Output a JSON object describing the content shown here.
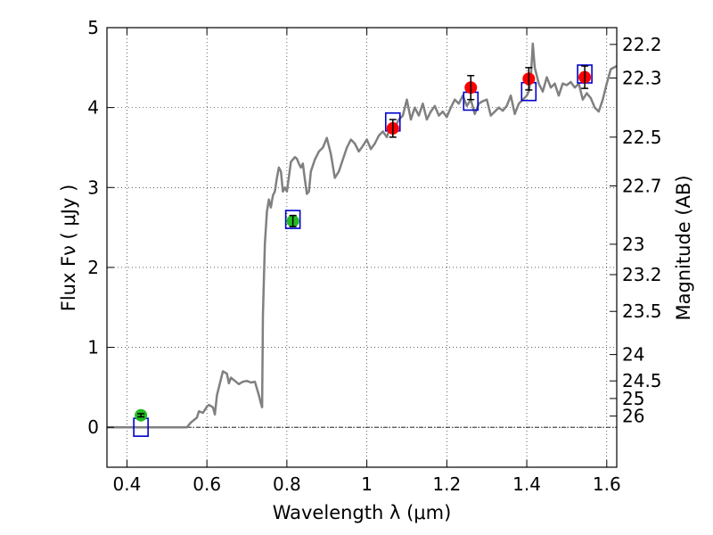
{
  "chart_data": {
    "type": "line",
    "xlabel": "Wavelength  λ (μm)",
    "ylabel": "Flux  Fν  ( μJy )",
    "ylabel_right": "Magnitude (AB)",
    "xlim": [
      0.35,
      1.625
    ],
    "ylim": [
      -0.5,
      5.0
    ],
    "grid": true,
    "x_ticks": [
      0.4,
      0.6,
      0.8,
      1.0,
      1.2,
      1.4,
      1.6
    ],
    "x_tick_labels": [
      "0.4",
      "0.6",
      "0.8",
      "1",
      "1.2",
      "1.4",
      "1.6"
    ],
    "y_ticks": [
      0,
      1,
      2,
      3,
      4,
      5
    ],
    "y_tick_labels": [
      "0",
      "1",
      "2",
      "3",
      "4",
      "5"
    ],
    "right_ticks": [
      {
        "label": "22.2",
        "flux": 4.79
      },
      {
        "label": "22.3",
        "flux": 4.37
      },
      {
        "label": "22.5",
        "flux": 3.63
      },
      {
        "label": "22.7",
        "flux": 3.02
      },
      {
        "label": "23",
        "flux": 2.29
      },
      {
        "label": "23.2",
        "flux": 1.91
      },
      {
        "label": "23.5",
        "flux": 1.45
      },
      {
        "label": "24",
        "flux": 0.91
      },
      {
        "label": "24.5",
        "flux": 0.58
      },
      {
        "label": "25",
        "flux": 0.36
      },
      {
        "label": "26",
        "flux": 0.14
      }
    ],
    "series": [
      {
        "kind": "spectrum",
        "color": "#808080",
        "x": [
          0.35,
          0.55,
          0.56,
          0.575,
          0.58,
          0.59,
          0.6,
          0.605,
          0.615,
          0.62,
          0.625,
          0.63,
          0.64,
          0.65,
          0.655,
          0.66,
          0.67,
          0.68,
          0.69,
          0.7,
          0.71,
          0.72,
          0.73,
          0.735,
          0.738,
          0.74,
          0.745,
          0.75,
          0.755,
          0.76,
          0.765,
          0.77,
          0.775,
          0.78,
          0.785,
          0.79,
          0.795,
          0.8,
          0.81,
          0.815,
          0.82,
          0.825,
          0.83,
          0.835,
          0.84,
          0.845,
          0.85,
          0.855,
          0.86,
          0.87,
          0.88,
          0.89,
          0.9,
          0.91,
          0.92,
          0.93,
          0.94,
          0.95,
          0.96,
          0.97,
          0.98,
          0.99,
          1.0,
          1.01,
          1.02,
          1.03,
          1.04,
          1.05,
          1.06,
          1.07,
          1.08,
          1.09,
          1.1,
          1.11,
          1.12,
          1.13,
          1.14,
          1.15,
          1.16,
          1.17,
          1.18,
          1.19,
          1.2,
          1.21,
          1.22,
          1.23,
          1.24,
          1.25,
          1.26,
          1.27,
          1.28,
          1.29,
          1.3,
          1.31,
          1.32,
          1.33,
          1.34,
          1.35,
          1.36,
          1.37,
          1.38,
          1.39,
          1.4,
          1.405,
          1.41,
          1.415,
          1.42,
          1.43,
          1.44,
          1.45,
          1.46,
          1.47,
          1.48,
          1.49,
          1.5,
          1.51,
          1.52,
          1.53,
          1.54,
          1.55,
          1.56,
          1.57,
          1.58,
          1.59,
          1.6,
          1.61,
          1.625
        ],
        "y": [
          0.0,
          0.0,
          0.06,
          0.12,
          0.2,
          0.18,
          0.26,
          0.28,
          0.25,
          0.16,
          0.4,
          0.5,
          0.7,
          0.67,
          0.55,
          0.62,
          0.58,
          0.54,
          0.57,
          0.58,
          0.56,
          0.57,
          0.4,
          0.3,
          0.25,
          1.4,
          2.3,
          2.7,
          2.85,
          2.75,
          2.9,
          2.95,
          3.12,
          3.25,
          3.2,
          2.95,
          3.0,
          2.95,
          3.32,
          3.35,
          3.38,
          3.36,
          3.3,
          3.25,
          3.3,
          3.1,
          2.92,
          2.95,
          3.2,
          3.35,
          3.45,
          3.5,
          3.62,
          3.42,
          3.12,
          3.2,
          3.35,
          3.5,
          3.6,
          3.55,
          3.45,
          3.52,
          3.6,
          3.48,
          3.55,
          3.65,
          3.7,
          3.63,
          3.78,
          3.75,
          3.85,
          3.9,
          4.1,
          3.85,
          4.0,
          3.9,
          4.05,
          3.85,
          3.95,
          4.02,
          3.9,
          3.95,
          3.88,
          4.0,
          4.1,
          4.05,
          4.15,
          4.02,
          4.1,
          3.92,
          4.05,
          4.08,
          4.1,
          3.9,
          3.95,
          4.0,
          3.96,
          4.02,
          4.15,
          3.92,
          4.05,
          4.1,
          4.15,
          4.2,
          4.35,
          4.8,
          4.5,
          4.3,
          4.2,
          4.38,
          4.25,
          4.3,
          4.15,
          4.3,
          4.28,
          4.32,
          4.25,
          4.3,
          4.1,
          4.18,
          4.12,
          4.0,
          3.95,
          4.1,
          4.3,
          4.48,
          4.52
        ]
      },
      {
        "kind": "model_photometry",
        "marker": "open-square",
        "color": "#0000cc",
        "x": [
          0.435,
          0.815,
          1.065,
          1.26,
          1.405,
          1.545
        ],
        "y": [
          0.0,
          2.6,
          3.82,
          4.08,
          4.2,
          4.42
        ]
      },
      {
        "kind": "observed_photometry",
        "marker": "filled-circle",
        "points": [
          {
            "x": 0.435,
            "y": 0.15,
            "err": 0.02,
            "color": "#22bb22"
          },
          {
            "x": 0.815,
            "y": 2.58,
            "err": 0.07,
            "color": "#22bb22"
          },
          {
            "x": 1.065,
            "y": 3.74,
            "err": 0.11,
            "color": "#ff0000"
          },
          {
            "x": 1.26,
            "y": 4.25,
            "err": 0.15,
            "color": "#ff0000"
          },
          {
            "x": 1.405,
            "y": 4.36,
            "err": 0.14,
            "color": "#ff0000"
          },
          {
            "x": 1.545,
            "y": 4.38,
            "err": 0.14,
            "color": "#ff0000"
          }
        ]
      }
    ]
  }
}
